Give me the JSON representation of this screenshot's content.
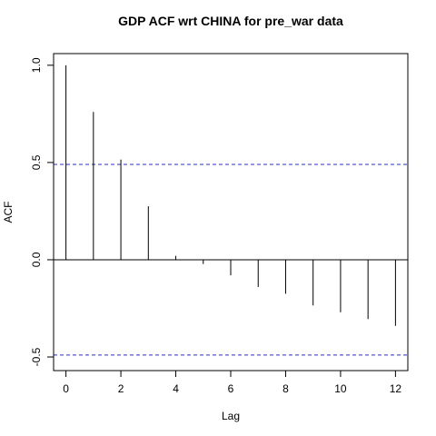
{
  "chart_data": {
    "type": "bar",
    "title": "GDP ACF wrt CHINA for pre_war data",
    "xlabel": "Lag",
    "ylabel": "ACF",
    "x": [
      0,
      1,
      2,
      3,
      4,
      5,
      6,
      7,
      8,
      9,
      10,
      11,
      12
    ],
    "values": [
      1.0,
      0.76,
      0.515,
      0.275,
      0.02,
      -0.022,
      -0.08,
      -0.14,
      -0.175,
      -0.235,
      -0.27,
      -0.305,
      -0.34
    ],
    "xlim": [
      -0.45,
      12.45
    ],
    "ylim": [
      -0.57,
      1.06
    ],
    "xticks": [
      "0",
      "2",
      "4",
      "6",
      "8",
      "10",
      "12"
    ],
    "yticks": [
      "-0.5",
      "0.0",
      "0.5",
      "1.0"
    ],
    "confidence_bounds": [
      0.49,
      -0.49
    ],
    "zero_line": 0,
    "bound_color": "#2b2bd6",
    "line_color": "#000000",
    "grid": false
  }
}
